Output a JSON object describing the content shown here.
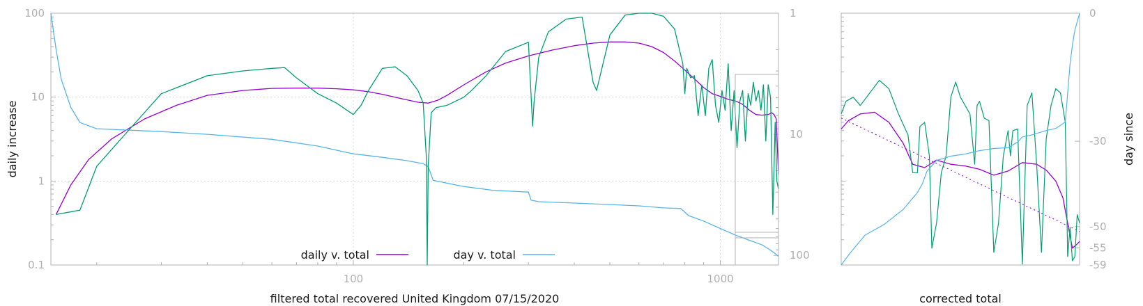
{
  "chart_data": [
    {
      "type": "line",
      "title": "",
      "xlabel": "filtered total recovered United Kingdom 07/15/2020",
      "ylabel": "daily increase",
      "y2label": "",
      "x_scale": "log",
      "y_scale": "log",
      "y2_scale": "log",
      "y2_reversed": true,
      "xlim": [
        15,
        1440
      ],
      "ylim": [
        0.1,
        100
      ],
      "y2lim": [
        1,
        120
      ],
      "grid": true,
      "legend_position": "bottom-center",
      "x_ticks": [
        "100",
        "1000"
      ],
      "y_ticks": [
        "0.1",
        "1",
        "10",
        "100"
      ],
      "y2_ticks": [
        "1",
        "10",
        "100"
      ],
      "colors": {
        "daily": "#9400d3",
        "day": "#56b4e9",
        "raw": "#009e73",
        "axis": "#b0b0b0",
        "grid": "#d8d8d8"
      },
      "series": [
        {
          "name": "daily v. total",
          "axis": "y",
          "x": [
            15.5,
            17,
            19,
            22,
            27,
            33,
            40,
            50,
            60,
            70,
            80,
            90,
            100,
            110,
            120,
            135,
            150,
            160,
            170,
            180,
            200,
            230,
            260,
            300,
            350,
            400,
            450,
            500,
            550,
            600,
            650,
            700,
            750,
            800,
            850,
            900,
            950,
            1000,
            1050,
            1100,
            1150,
            1200,
            1250,
            1300,
            1350,
            1380,
            1400,
            1420,
            1440
          ],
          "values": [
            0.4,
            0.9,
            1.8,
            3.2,
            5.5,
            8,
            10.5,
            12,
            12.7,
            12.8,
            12.8,
            12.6,
            12.2,
            11.6,
            10.8,
            9.6,
            8.7,
            8.5,
            9.2,
            10.5,
            14,
            20,
            25.5,
            31,
            36.5,
            41,
            44,
            45.5,
            45.5,
            44,
            40,
            34,
            27,
            21,
            16.5,
            13,
            11,
            10.2,
            9.4,
            9,
            8.2,
            7,
            6.2,
            6.1,
            6.2,
            6.5,
            6.2,
            5.5,
            1.2
          ]
        },
        {
          "name": "day v. total",
          "axis": "y2",
          "x": [
            15,
            15.5,
            16,
            17,
            18,
            20,
            30,
            40,
            60,
            80,
            100,
            120,
            140,
            155,
            160,
            165,
            200,
            240,
            300,
            305,
            320,
            400,
            500,
            600,
            700,
            780,
            800,
            820,
            900,
            1000,
            1100,
            1200,
            1300,
            1350,
            1400,
            1440
          ],
          "values": [
            1,
            2,
            3.5,
            6,
            8,
            9,
            9.5,
            10,
            11,
            12.5,
            14.5,
            15.5,
            16.5,
            17.5,
            18.5,
            24,
            27,
            29,
            30,
            35,
            36,
            37,
            38,
            39,
            40.5,
            41,
            44,
            47,
            52,
            60,
            68,
            75,
            82,
            88,
            95,
            102
          ]
        },
        {
          "name": "",
          "axis": "y",
          "x": [
            15.5,
            18,
            20,
            25,
            30,
            40,
            50,
            60,
            65,
            70,
            80,
            90,
            100,
            105,
            110,
            120,
            130,
            140,
            150,
            155,
            158,
            159,
            160,
            163,
            168,
            180,
            200,
            210,
            230,
            260,
            300,
            308,
            311,
            320,
            340,
            380,
            420,
            450,
            460,
            500,
            550,
            600,
            650,
            700,
            750,
            790,
            800,
            810,
            830,
            850,
            870,
            890,
            910,
            930,
            950,
            970,
            990,
            1010,
            1030,
            1050,
            1070,
            1090,
            1110,
            1130,
            1150,
            1170,
            1190,
            1210,
            1230,
            1250,
            1270,
            1290,
            1310,
            1330,
            1350,
            1370,
            1390,
            1410,
            1425,
            1440
          ],
          "values": [
            0.4,
            0.45,
            1.5,
            4.5,
            11,
            18,
            20.5,
            22,
            22.5,
            17,
            11,
            8.5,
            6.2,
            8,
            12,
            22,
            23,
            18,
            12,
            8.5,
            2,
            0.1,
            1.5,
            6.5,
            7.5,
            8,
            10,
            12,
            18,
            35,
            45,
            4.5,
            9,
            30,
            60,
            85,
            90,
            15,
            12,
            55,
            95,
            102,
            100,
            92,
            65,
            25,
            11,
            22,
            17,
            18,
            6,
            14,
            6,
            22,
            28,
            8,
            5,
            12,
            7,
            25,
            4,
            12,
            2.5,
            9,
            12,
            3,
            11,
            8,
            15,
            9,
            12,
            7,
            14,
            3,
            14,
            10,
            0.4,
            5,
            1,
            0.8
          ]
        }
      ]
    },
    {
      "type": "line",
      "title": "",
      "xlabel": "corrected total",
      "ylabel": "",
      "y2label": "day since",
      "y_scale": "log",
      "ylim": [
        0.1,
        100
      ],
      "y2lim": [
        -59,
        0
      ],
      "x_ticks": [],
      "y2_ticks": [
        "0",
        "-30",
        "-50",
        "-55",
        "-59"
      ],
      "series": [
        {
          "name": "",
          "axis": "y",
          "x": [
            0,
            0.03,
            0.08,
            0.14,
            0.2,
            0.26,
            0.3,
            0.35,
            0.4,
            0.46,
            0.52,
            0.58,
            0.64,
            0.7,
            0.76,
            0.82,
            0.86,
            0.9,
            0.93,
            0.95,
            0.97,
            0.99,
            1
          ],
          "values": [
            0.62,
            0.72,
            0.8,
            0.82,
            0.7,
            0.45,
            0.2,
            0.16,
            0.25,
            0.2,
            0.18,
            0.14,
            0.07,
            0.12,
            0.22,
            0.2,
            0.13,
            0.0,
            -0.2,
            -0.5,
            -0.8,
            -0.75,
            -0.72
          ]
        },
        {
          "name": "",
          "axis": "y",
          "x": [
            0,
            1
          ],
          "values": [
            0.75,
            -0.6
          ]
        },
        {
          "name": "",
          "axis": "y",
          "x": [
            0,
            0.02,
            0.05,
            0.08,
            0.12,
            0.16,
            0.2,
            0.24,
            0.28,
            0.3,
            0.32,
            0.33,
            0.35,
            0.37,
            0.38,
            0.4,
            0.42,
            0.44,
            0.46,
            0.48,
            0.5,
            0.52,
            0.54,
            0.56,
            0.57,
            0.58,
            0.6,
            0.62,
            0.64,
            0.66,
            0.68,
            0.7,
            0.71,
            0.72,
            0.74,
            0.76,
            0.78,
            0.8,
            0.82,
            0.84,
            0.86,
            0.88,
            0.9,
            0.92,
            0.94,
            0.95,
            0.96,
            0.97,
            0.98,
            0.99,
            1
          ],
          "values": [
            0.8,
            0.95,
            1.0,
            0.9,
            1.05,
            1.2,
            1.1,
            0.8,
            0.55,
            0.1,
            0.1,
            0.65,
            0.7,
            0.3,
            -0.8,
            -0.5,
            0.1,
            0.3,
            1.0,
            1.18,
            1.0,
            0.9,
            0.8,
            0.2,
            0.9,
            0.95,
            0.75,
            0.72,
            -0.85,
            -0.5,
            0.3,
            0.6,
            0.3,
            0.6,
            0.62,
            -0.99,
            0.9,
            1.05,
            0.2,
            -0.85,
            0.5,
            0.9,
            1.1,
            1.05,
            0.7,
            -0.9,
            -0.55,
            -0.95,
            -0.9,
            -0.4,
            -0.5
          ]
        },
        {
          "name": "",
          "axis": "y2",
          "x": [
            0,
            0.04,
            0.1,
            0.18,
            0.26,
            0.32,
            0.34,
            0.36,
            0.4,
            0.46,
            0.52,
            0.58,
            0.64,
            0.7,
            0.74,
            0.76,
            0.8,
            0.86,
            0.9,
            0.94,
            0.96,
            0.97,
            0.98,
            0.99,
            1
          ],
          "values": [
            -59,
            -56,
            -52,
            -49.5,
            -46,
            -42,
            -40,
            -37,
            -34.5,
            -33.5,
            -33,
            -32.2,
            -31.7,
            -31.5,
            -30.2,
            -29,
            -28.5,
            -27.5,
            -27,
            -25.5,
            -12,
            -7.5,
            -4,
            -2,
            0
          ]
        }
      ]
    }
  ]
}
